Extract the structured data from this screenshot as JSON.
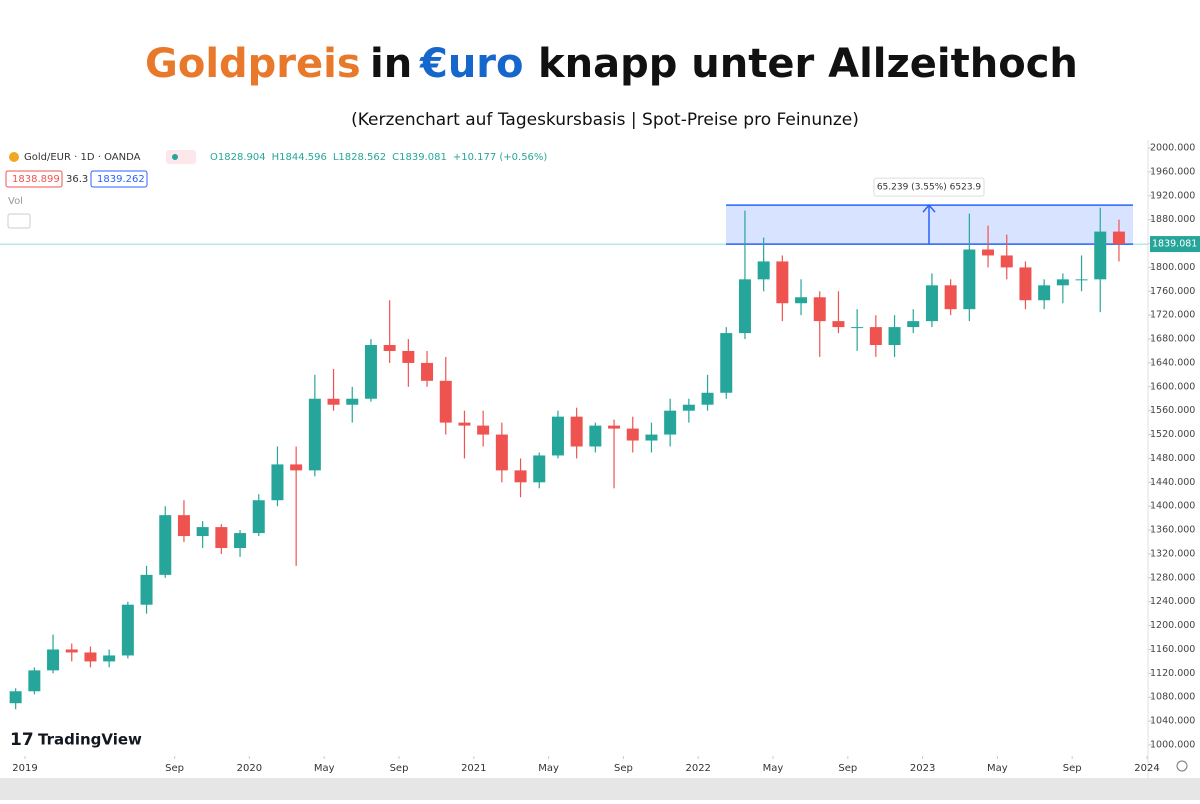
{
  "chart_data": {
    "type": "candlestick",
    "title_parts": [
      "Goldpreis",
      "in",
      "€uro",
      "knapp unter Allzeithoch"
    ],
    "subtitle": "(Kerzenchart auf Tageskursbasis | Spot-Preise pro Feinunze)",
    "symbol": "Gold/EUR · 1D · OANDA",
    "legend_values": [
      "O1828.904",
      "H1844.596",
      "L1828.562",
      "C1839.081",
      "+10.177 (+0.56%)"
    ],
    "bid": "1838.899",
    "spread": "36.3",
    "ask": "1839.262",
    "volume_label": "Vol",
    "watermark": "TradingView",
    "up_color": "#26a69a",
    "down_color": "#ef5350",
    "last_price": {
      "value": 1839.081,
      "label": "1839.081"
    },
    "measure": {
      "change": 65.239,
      "label": "65.239 (3.55%) 6523.9"
    },
    "x": [
      "2018-12",
      "2019-01",
      "2019-02",
      "2019-03",
      "2019-04",
      "2019-05",
      "2019-06",
      "2019-07",
      "2019-08",
      "2019-09",
      "2019-10",
      "2019-11",
      "2019-12",
      "2020-01",
      "2020-02",
      "2020-03",
      "2020-04",
      "2020-05",
      "2020-06",
      "2020-07",
      "2020-08",
      "2020-09",
      "2020-10",
      "2020-11",
      "2020-12",
      "2021-01",
      "2021-02",
      "2021-03",
      "2021-04",
      "2021-05",
      "2021-06",
      "2021-07",
      "2021-08",
      "2021-09",
      "2021-10",
      "2021-11",
      "2021-12",
      "2022-01",
      "2022-02",
      "2022-03",
      "2022-04",
      "2022-05",
      "2022-06",
      "2022-07",
      "2022-08",
      "2022-09",
      "2022-10",
      "2022-11",
      "2022-12",
      "2023-01",
      "2023-02",
      "2023-03",
      "2023-04",
      "2023-05",
      "2023-06",
      "2023-07",
      "2023-08",
      "2023-09",
      "2023-10",
      "2023-11"
    ],
    "open": [
      1070,
      1090,
      1125,
      1160,
      1155,
      1140,
      1150,
      1235,
      1285,
      1385,
      1350,
      1365,
      1330,
      1355,
      1410,
      1470,
      1460,
      1580,
      1570,
      1580,
      1670,
      1660,
      1640,
      1610,
      1540,
      1535,
      1520,
      1460,
      1440,
      1485,
      1550,
      1500,
      1535,
      1530,
      1510,
      1520,
      1560,
      1570,
      1590,
      1690,
      1780,
      1810,
      1740,
      1750,
      1710,
      1700,
      1700,
      1670,
      1700,
      1710,
      1770,
      1730,
      1830,
      1820,
      1800,
      1745,
      1770,
      1780,
      1780,
      1860
    ],
    "high": [
      1095,
      1130,
      1185,
      1170,
      1165,
      1160,
      1240,
      1300,
      1400,
      1410,
      1375,
      1370,
      1360,
      1420,
      1500,
      1500,
      1620,
      1630,
      1600,
      1680,
      1745,
      1680,
      1660,
      1650,
      1560,
      1560,
      1540,
      1480,
      1490,
      1560,
      1565,
      1540,
      1545,
      1550,
      1540,
      1580,
      1580,
      1620,
      1700,
      1895,
      1850,
      1820,
      1780,
      1760,
      1760,
      1730,
      1720,
      1720,
      1730,
      1790,
      1780,
      1890,
      1870,
      1855,
      1810,
      1780,
      1790,
      1820,
      1900,
      1880
    ],
    "low": [
      1060,
      1085,
      1120,
      1140,
      1130,
      1130,
      1145,
      1220,
      1280,
      1340,
      1330,
      1320,
      1315,
      1350,
      1400,
      1300,
      1450,
      1560,
      1540,
      1575,
      1640,
      1600,
      1600,
      1520,
      1480,
      1500,
      1440,
      1415,
      1430,
      1480,
      1480,
      1490,
      1430,
      1490,
      1490,
      1500,
      1540,
      1560,
      1580,
      1680,
      1760,
      1710,
      1720,
      1650,
      1690,
      1660,
      1650,
      1650,
      1690,
      1700,
      1720,
      1710,
      1800,
      1780,
      1730,
      1730,
      1740,
      1760,
      1725,
      1810
    ],
    "close": [
      1090,
      1125,
      1160,
      1155,
      1140,
      1150,
      1235,
      1285,
      1385,
      1350,
      1365,
      1330,
      1355,
      1410,
      1470,
      1460,
      1580,
      1570,
      1580,
      1670,
      1660,
      1640,
      1610,
      1540,
      1535,
      1520,
      1460,
      1440,
      1485,
      1550,
      1500,
      1535,
      1530,
      1510,
      1520,
      1560,
      1570,
      1590,
      1690,
      1780,
      1810,
      1740,
      1750,
      1710,
      1700,
      1700,
      1670,
      1700,
      1710,
      1770,
      1730,
      1830,
      1820,
      1800,
      1745,
      1770,
      1780,
      1780,
      1860,
      1839.081
    ],
    "xticks": [
      {
        "value": "2019-01",
        "label": "2019"
      },
      {
        "value": "2019-09",
        "label": "Sep"
      },
      {
        "value": "2020-01",
        "label": "2020"
      },
      {
        "value": "2020-05",
        "label": "May"
      },
      {
        "value": "2020-09",
        "label": "Sep"
      },
      {
        "value": "2021-01",
        "label": "2021"
      },
      {
        "value": "2021-05",
        "label": "May"
      },
      {
        "value": "2021-09",
        "label": "Sep"
      },
      {
        "value": "2022-01",
        "label": "2022"
      },
      {
        "value": "2022-05",
        "label": "May"
      },
      {
        "value": "2022-09",
        "label": "Sep"
      },
      {
        "value": "2023-01",
        "label": "2023"
      },
      {
        "value": "2023-05",
        "label": "May"
      },
      {
        "value": "2023-09",
        "label": "Sep"
      },
      {
        "value": "2024-01",
        "label": "2024"
      }
    ],
    "ylim": [
      1000,
      2000
    ],
    "yticks": [
      {
        "value": 1000,
        "label": "1000.000"
      },
      {
        "value": 1040,
        "label": "1040.000"
      },
      {
        "value": 1080,
        "label": "1080.000"
      },
      {
        "value": 1120,
        "label": "1120.000"
      },
      {
        "value": 1160,
        "label": "1160.000"
      },
      {
        "value": 1200,
        "label": "1200.000"
      },
      {
        "value": 1240,
        "label": "1240.000"
      },
      {
        "value": 1280,
        "label": "1280.000"
      },
      {
        "value": 1320,
        "label": "1320.000"
      },
      {
        "value": 1360,
        "label": "1360.000"
      },
      {
        "value": 1400,
        "label": "1400.000"
      },
      {
        "value": 1440,
        "label": "1440.000"
      },
      {
        "value": 1480,
        "label": "1480.000"
      },
      {
        "value": 1520,
        "label": "1520.000"
      },
      {
        "value": 1560,
        "label": "1560.000"
      },
      {
        "value": 1600,
        "label": "1600.000"
      },
      {
        "value": 1640,
        "label": "1640.000"
      },
      {
        "value": 1680,
        "label": "1680.000"
      },
      {
        "value": 1720,
        "label": "1720.000"
      },
      {
        "value": 1760,
        "label": "1760.000"
      },
      {
        "value": 1800,
        "label": "1800.000"
      },
      {
        "value": 1840,
        "label": "1840.000"
      },
      {
        "value": 1880,
        "label": "1880.000"
      },
      {
        "value": 1920,
        "label": "1920.000"
      },
      {
        "value": 1960,
        "label": "1960.000"
      },
      {
        "value": 2000,
        "label": "2000.000"
      }
    ]
  }
}
